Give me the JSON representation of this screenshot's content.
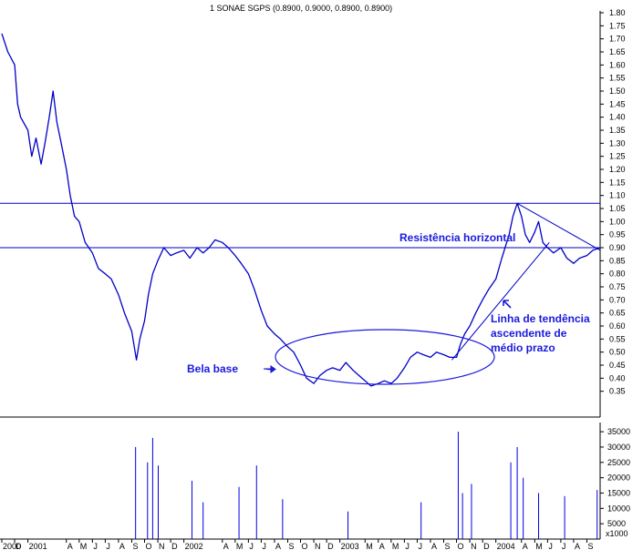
{
  "chart_data": {
    "type": "line",
    "title": "1 SONAE SGPS (0.8900, 0.9000, 0.8900, 0.8900)",
    "colors": {
      "price": "#0000c8",
      "volume": "#0000e6",
      "annotation": "#1a1adc",
      "frame": "#000000"
    },
    "price_axis": {
      "ylim": [
        0.3,
        1.8
      ],
      "ticks": [
        "1.80",
        "1.75",
        "1.70",
        "1.65",
        "1.60",
        "1.55",
        "1.50",
        "1.45",
        "1.40",
        "1.35",
        "1.30",
        "1.25",
        "1.20",
        "1.15",
        "1.10",
        "1.05",
        "1.00",
        "0.95",
        "0.90",
        "0.85",
        "0.80",
        "0.75",
        "0.70",
        "0.65",
        "0.60",
        "0.55",
        "0.50",
        "0.45",
        "0.40",
        "0.35"
      ]
    },
    "volume_axis": {
      "ylim": [
        0,
        38000
      ],
      "ticks": [
        "35000",
        "30000",
        "25000",
        "20000",
        "15000",
        "10000",
        "5000"
      ],
      "unit": "x1000"
    },
    "x_axis": {
      "range": [
        "2000-11",
        "2004-09"
      ],
      "ticks": [
        {
          "t": "2000",
          "d": "2000-11"
        },
        {
          "t": "D",
          "d": "2000-12"
        },
        {
          "t": "2001",
          "d": "2001-01"
        },
        {
          "t": "A",
          "d": "2001-04"
        },
        {
          "t": "M",
          "d": "2001-05"
        },
        {
          "t": "J",
          "d": "2001-06"
        },
        {
          "t": "J",
          "d": "2001-07"
        },
        {
          "t": "A",
          "d": "2001-08"
        },
        {
          "t": "S",
          "d": "2001-09"
        },
        {
          "t": "O",
          "d": "2001-10"
        },
        {
          "t": "N",
          "d": "2001-11"
        },
        {
          "t": "D",
          "d": "2001-12"
        },
        {
          "t": "2002",
          "d": "2002-01"
        },
        {
          "t": "A",
          "d": "2002-04"
        },
        {
          "t": "M",
          "d": "2002-05"
        },
        {
          "t": "J",
          "d": "2002-06"
        },
        {
          "t": "J",
          "d": "2002-07"
        },
        {
          "t": "A",
          "d": "2002-08"
        },
        {
          "t": "S",
          "d": "2002-09"
        },
        {
          "t": "O",
          "d": "2002-10"
        },
        {
          "t": "N",
          "d": "2002-11"
        },
        {
          "t": "D",
          "d": "2002-12"
        },
        {
          "t": "2003",
          "d": "2003-01"
        },
        {
          "t": "M",
          "d": "2003-03"
        },
        {
          "t": "A",
          "d": "2003-04"
        },
        {
          "t": "M",
          "d": "2003-05"
        },
        {
          "t": "J",
          "d": "2003-06"
        },
        {
          "t": "J",
          "d": "2003-07"
        },
        {
          "t": "A",
          "d": "2003-08"
        },
        {
          "t": "S",
          "d": "2003-09"
        },
        {
          "t": "O",
          "d": "2003-10"
        },
        {
          "t": "N",
          "d": "2003-11"
        },
        {
          "t": "D",
          "d": "2003-12"
        },
        {
          "t": "2004",
          "d": "2004-01"
        },
        {
          "t": "A",
          "d": "2004-03"
        },
        {
          "t": "M",
          "d": "2004-04"
        },
        {
          "t": "J",
          "d": "2004-05"
        },
        {
          "t": "J",
          "d": "2004-06"
        },
        {
          "t": "A",
          "d": "2004-07"
        },
        {
          "t": "S",
          "d": "2004-08"
        }
      ]
    },
    "series": [
      {
        "values": [
          [
            "2000-11",
            1.72
          ],
          [
            "2000-11-15",
            1.65
          ],
          [
            "2000-12",
            1.6
          ],
          [
            "2000-12-08",
            1.45
          ],
          [
            "2000-12-15",
            1.4
          ],
          [
            "2001-01",
            1.35
          ],
          [
            "2001-01-10",
            1.25
          ],
          [
            "2001-01-20",
            1.32
          ],
          [
            "2001-02",
            1.22
          ],
          [
            "2001-02-10",
            1.3
          ],
          [
            "2001-02-20",
            1.4
          ],
          [
            "2001-03",
            1.5
          ],
          [
            "2001-03-10",
            1.38
          ],
          [
            "2001-03-20",
            1.3
          ],
          [
            "2001-04",
            1.2
          ],
          [
            "2001-04-10",
            1.1
          ],
          [
            "2001-04-20",
            1.02
          ],
          [
            "2001-05",
            1.0
          ],
          [
            "2001-05-15",
            0.92
          ],
          [
            "2001-06",
            0.88
          ],
          [
            "2001-06-15",
            0.82
          ],
          [
            "2001-07",
            0.8
          ],
          [
            "2001-07-15",
            0.78
          ],
          [
            "2001-08",
            0.72
          ],
          [
            "2001-08-15",
            0.65
          ],
          [
            "2001-09",
            0.58
          ],
          [
            "2001-09-12",
            0.47
          ],
          [
            "2001-09-20",
            0.55
          ],
          [
            "2001-10",
            0.62
          ],
          [
            "2001-10-10",
            0.72
          ],
          [
            "2001-10-20",
            0.8
          ],
          [
            "2001-11",
            0.85
          ],
          [
            "2001-11-15",
            0.9
          ],
          [
            "2001-12",
            0.87
          ],
          [
            "2001-12-15",
            0.88
          ],
          [
            "2002-01",
            0.89
          ],
          [
            "2002-01-15",
            0.86
          ],
          [
            "2002-02",
            0.9
          ],
          [
            "2002-02-15",
            0.88
          ],
          [
            "2002-03",
            0.9
          ],
          [
            "2002-03-15",
            0.93
          ],
          [
            "2002-04",
            0.92
          ],
          [
            "2002-04-15",
            0.9
          ],
          [
            "2002-05",
            0.87
          ],
          [
            "2002-05-15",
            0.84
          ],
          [
            "2002-06",
            0.8
          ],
          [
            "2002-06-15",
            0.74
          ],
          [
            "2002-07",
            0.66
          ],
          [
            "2002-07-15",
            0.6
          ],
          [
            "2002-08",
            0.57
          ],
          [
            "2002-08-15",
            0.55
          ],
          [
            "2002-09",
            0.52
          ],
          [
            "2002-09-15",
            0.5
          ],
          [
            "2002-10",
            0.45
          ],
          [
            "2002-10-15",
            0.4
          ],
          [
            "2002-11",
            0.38
          ],
          [
            "2002-11-15",
            0.41
          ],
          [
            "2002-12",
            0.43
          ],
          [
            "2002-12-15",
            0.44
          ],
          [
            "2003-01",
            0.43
          ],
          [
            "2003-01-15",
            0.46
          ],
          [
            "2003-02",
            0.43
          ],
          [
            "2003-02-15",
            0.41
          ],
          [
            "2003-03",
            0.39
          ],
          [
            "2003-03-15",
            0.37
          ],
          [
            "2003-04",
            0.38
          ],
          [
            "2003-04-15",
            0.39
          ],
          [
            "2003-05",
            0.38
          ],
          [
            "2003-05-15",
            0.4
          ],
          [
            "2003-06",
            0.44
          ],
          [
            "2003-06-15",
            0.48
          ],
          [
            "2003-07",
            0.5
          ],
          [
            "2003-07-15",
            0.49
          ],
          [
            "2003-08",
            0.48
          ],
          [
            "2003-08-15",
            0.5
          ],
          [
            "2003-09",
            0.49
          ],
          [
            "2003-09-15",
            0.48
          ],
          [
            "2003-10",
            0.48
          ],
          [
            "2003-10-10",
            0.53
          ],
          [
            "2003-10-20",
            0.57
          ],
          [
            "2003-11",
            0.6
          ],
          [
            "2003-11-15",
            0.65
          ],
          [
            "2003-12",
            0.7
          ],
          [
            "2003-12-15",
            0.74
          ],
          [
            "2004-01",
            0.78
          ],
          [
            "2004-01-15",
            0.86
          ],
          [
            "2004-02",
            0.95
          ],
          [
            "2004-02-10",
            1.02
          ],
          [
            "2004-02-20",
            1.07
          ],
          [
            "2004-03",
            1.02
          ],
          [
            "2004-03-10",
            0.95
          ],
          [
            "2004-03-20",
            0.92
          ],
          [
            "2004-04",
            0.96
          ],
          [
            "2004-04-10",
            1.0
          ],
          [
            "2004-04-20",
            0.92
          ],
          [
            "2004-05",
            0.9
          ],
          [
            "2004-05-15",
            0.88
          ],
          [
            "2004-06",
            0.9
          ],
          [
            "2004-06-15",
            0.86
          ],
          [
            "2004-07",
            0.84
          ],
          [
            "2004-07-15",
            0.86
          ],
          [
            "2004-08",
            0.87
          ],
          [
            "2004-08-15",
            0.89
          ],
          [
            "2004-09",
            0.9
          ]
        ]
      }
    ],
    "volume": [
      [
        "2001-09-10",
        30000
      ],
      [
        "2001-10-08",
        25000
      ],
      [
        "2001-10-20",
        33000
      ],
      [
        "2001-11-02",
        24000
      ],
      [
        "2002-01-20",
        19000
      ],
      [
        "2002-02-15",
        12000
      ],
      [
        "2002-05-10",
        17000
      ],
      [
        "2002-06-20",
        24000
      ],
      [
        "2002-08-20",
        13000
      ],
      [
        "2003-01-20",
        9000
      ],
      [
        "2003-07-10",
        12000
      ],
      [
        "2003-10-05",
        35000
      ],
      [
        "2003-10-15",
        15000
      ],
      [
        "2003-11-05",
        18000
      ],
      [
        "2004-02-05",
        25000
      ],
      [
        "2004-02-20",
        30000
      ],
      [
        "2004-03-05",
        20000
      ],
      [
        "2004-04-10",
        15000
      ],
      [
        "2004-06-10",
        14000
      ],
      [
        "2004-08-25",
        16000
      ]
    ],
    "horizontal_lines": [
      1.07,
      0.9
    ],
    "trendlines": [
      {
        "from": [
          "2003-09-20",
          0.47
        ],
        "to": [
          "2004-05-05",
          0.92
        ]
      },
      {
        "from": [
          "2004-02-20",
          1.07
        ],
        "to": [
          "2004-09",
          0.89
        ]
      }
    ],
    "annotations": {
      "resistance": "Resistência horizontal",
      "trend_line1": "Linha de tendência",
      "trend_line2": "ascendente de",
      "trend_line3": "médio prazo",
      "base": "Bela base"
    }
  }
}
